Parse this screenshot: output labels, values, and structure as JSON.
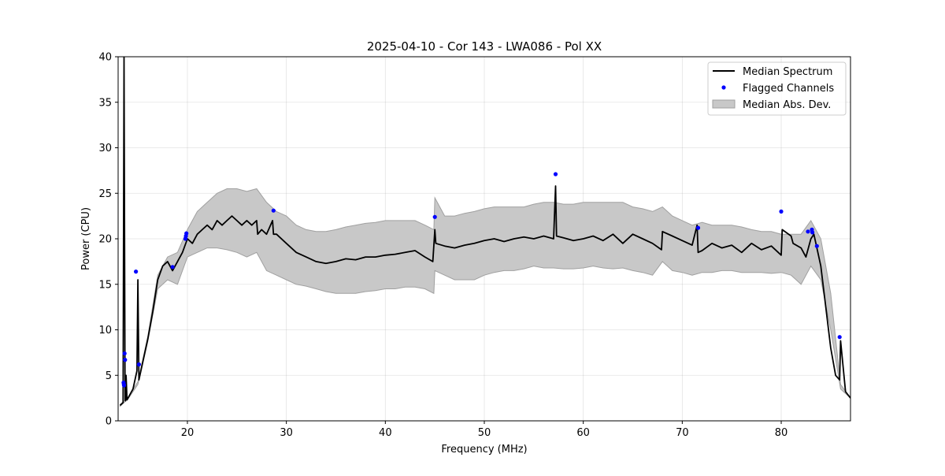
{
  "chart_data": {
    "type": "line",
    "title": "2025-04-10 - Cor 143 - LWA086 - Pol XX",
    "xlabel": "Frequency (MHz)",
    "ylabel": "Power (CPU)",
    "xlim": [
      13,
      87
    ],
    "ylim": [
      0,
      40
    ],
    "xticks": [
      20,
      30,
      40,
      50,
      60,
      70,
      80
    ],
    "yticks": [
      0,
      5,
      10,
      15,
      20,
      25,
      30,
      35,
      40
    ],
    "grid": true,
    "legend_position": "top-right",
    "legend": [
      "Median Spectrum",
      "Flagged Channels",
      "Median Abs. Dev."
    ],
    "colors": {
      "median": "#000000",
      "flagged": "#0000ff",
      "mad_fill": "#c8c8c8",
      "mad_edge": "#a0a0a0"
    },
    "series": [
      {
        "name": "Median Spectrum",
        "x": [
          13.2,
          13.5,
          13.6,
          13.7,
          13.75,
          13.8,
          13.9,
          14.0,
          14.5,
          14.9,
          15.0,
          15.1,
          15.3,
          15.6,
          16.0,
          16.5,
          17.0,
          17.5,
          18.0,
          18.5,
          19.0,
          19.5,
          20.0,
          20.5,
          21.0,
          21.5,
          22.0,
          22.5,
          23.0,
          23.5,
          24.0,
          24.5,
          25.0,
          25.5,
          26.0,
          26.5,
          27.0,
          27.1,
          27.5,
          28.0,
          28.6,
          28.7,
          29.0,
          30.0,
          31.0,
          32.0,
          33.0,
          34.0,
          35.0,
          36.0,
          37.0,
          38.0,
          39.0,
          40.0,
          41.0,
          42.0,
          43.0,
          44.0,
          44.8,
          45.0,
          45.1,
          46.0,
          47.0,
          48.0,
          49.0,
          50.0,
          51.0,
          52.0,
          53.0,
          54.0,
          55.0,
          56.0,
          57.0,
          57.2,
          57.3,
          58.0,
          59.0,
          60.0,
          61.0,
          62.0,
          63.0,
          64.0,
          65.0,
          66.0,
          67.0,
          67.9,
          68.0,
          69.0,
          70.0,
          71.0,
          71.5,
          71.6,
          72.0,
          73.0,
          74.0,
          75.0,
          76.0,
          77.0,
          78.0,
          79.0,
          80.0,
          80.1,
          81.0,
          81.2,
          82.0,
          82.5,
          83.0,
          83.3,
          83.6,
          84.0,
          84.5,
          85.0,
          85.5,
          85.9,
          86.0,
          86.5,
          87.0
        ],
        "y": [
          1.7,
          2.0,
          40.0,
          2.3,
          2.2,
          5.0,
          2.3,
          2.5,
          3.5,
          5.5,
          15.5,
          4.5,
          5.5,
          7.0,
          9.0,
          12.0,
          15.5,
          17.0,
          17.5,
          16.5,
          17.5,
          18.5,
          20.0,
          19.5,
          20.5,
          21.0,
          21.5,
          21.0,
          22.0,
          21.5,
          22.0,
          22.5,
          22.0,
          21.5,
          22.0,
          21.5,
          22.0,
          20.5,
          21.0,
          20.5,
          22.0,
          20.5,
          20.5,
          19.5,
          18.5,
          18.0,
          17.5,
          17.3,
          17.5,
          17.8,
          17.7,
          18.0,
          18.0,
          18.2,
          18.3,
          18.5,
          18.7,
          18.0,
          17.5,
          21.0,
          19.5,
          19.2,
          19.0,
          19.3,
          19.5,
          19.8,
          20.0,
          19.7,
          20.0,
          20.2,
          20.0,
          20.3,
          20.0,
          25.8,
          20.3,
          20.1,
          19.8,
          20.0,
          20.3,
          19.8,
          20.5,
          19.5,
          20.5,
          20.0,
          19.5,
          18.8,
          20.8,
          20.3,
          19.8,
          19.3,
          21.5,
          18.5,
          18.7,
          19.5,
          19.0,
          19.3,
          18.5,
          19.5,
          18.8,
          19.2,
          18.2,
          21.0,
          20.3,
          19.5,
          19.0,
          18.0,
          20.0,
          20.5,
          19.0,
          17.0,
          12.5,
          8.0,
          5.0,
          4.5,
          8.8,
          3.2,
          2.5
        ]
      },
      {
        "name": "Median Abs. Dev.",
        "x": [
          13.2,
          14.0,
          15.0,
          16.0,
          17.0,
          18.0,
          19.0,
          20.0,
          21.0,
          22.0,
          23.0,
          24.0,
          25.0,
          26.0,
          27.0,
          28.0,
          29.0,
          30.0,
          31.0,
          32.0,
          33.0,
          34.0,
          35.0,
          36.0,
          37.0,
          38.0,
          39.0,
          40.0,
          41.0,
          42.0,
          43.0,
          44.0,
          44.9,
          45.0,
          46.0,
          47.0,
          48.0,
          49.0,
          50.0,
          51.0,
          52.0,
          53.0,
          54.0,
          55.0,
          56.0,
          57.0,
          58.0,
          59.0,
          60.0,
          61.0,
          62.0,
          63.0,
          64.0,
          65.0,
          66.0,
          67.0,
          68.0,
          69.0,
          70.0,
          71.0,
          72.0,
          73.0,
          74.0,
          75.0,
          76.0,
          77.0,
          78.0,
          79.0,
          80.0,
          81.0,
          82.0,
          83.0,
          84.0,
          85.0,
          86.0,
          87.0
        ],
        "upper": [
          1.8,
          2.6,
          4.3,
          9.3,
          16.0,
          18.0,
          18.5,
          21.0,
          23.0,
          24.0,
          25.0,
          25.5,
          25.5,
          25.2,
          25.5,
          24.0,
          23.0,
          22.5,
          21.5,
          21.0,
          20.8,
          20.8,
          21.0,
          21.3,
          21.5,
          21.7,
          21.8,
          22.0,
          22.0,
          22.0,
          22.0,
          21.5,
          21.0,
          24.5,
          22.5,
          22.5,
          22.8,
          23.0,
          23.3,
          23.5,
          23.5,
          23.5,
          23.5,
          23.8,
          24.0,
          24.0,
          23.8,
          23.8,
          24.0,
          24.0,
          24.0,
          24.0,
          24.0,
          23.5,
          23.3,
          23.0,
          23.5,
          22.5,
          22.0,
          21.5,
          21.8,
          21.5,
          21.5,
          21.5,
          21.3,
          21.0,
          20.8,
          20.8,
          20.5,
          20.5,
          20.5,
          22.0,
          20.0,
          14.0,
          4.0,
          2.5
        ],
        "lower": [
          1.6,
          2.4,
          4.0,
          8.7,
          14.5,
          15.5,
          15.0,
          18.0,
          18.5,
          19.0,
          19.0,
          18.8,
          18.5,
          18.0,
          18.5,
          16.5,
          16.0,
          15.5,
          15.0,
          14.8,
          14.5,
          14.2,
          14.0,
          14.0,
          14.0,
          14.2,
          14.3,
          14.5,
          14.5,
          14.7,
          14.7,
          14.5,
          14.0,
          16.5,
          16.0,
          15.5,
          15.5,
          15.5,
          16.0,
          16.3,
          16.5,
          16.5,
          16.7,
          17.0,
          16.8,
          16.8,
          16.7,
          16.7,
          16.8,
          17.0,
          16.8,
          16.7,
          16.8,
          16.5,
          16.3,
          16.0,
          17.5,
          16.5,
          16.3,
          16.0,
          16.3,
          16.3,
          16.5,
          16.5,
          16.3,
          16.3,
          16.3,
          16.2,
          16.3,
          16.0,
          15.0,
          17.0,
          15.5,
          10.0,
          3.5,
          2.5
        ]
      },
      {
        "name": "Flagged Channels",
        "points": [
          [
            13.65,
            7.4
          ],
          [
            13.7,
            6.7
          ],
          [
            13.55,
            4.2
          ],
          [
            13.6,
            3.9
          ],
          [
            13.58,
            4.0
          ],
          [
            14.8,
            16.4
          ],
          [
            15.1,
            6.2
          ],
          [
            18.5,
            16.9
          ],
          [
            19.8,
            20.0
          ],
          [
            19.85,
            20.3
          ],
          [
            19.9,
            20.6
          ],
          [
            28.7,
            23.1
          ],
          [
            45.0,
            22.4
          ],
          [
            57.2,
            27.1
          ],
          [
            71.6,
            21.2
          ],
          [
            80.0,
            23.0
          ],
          [
            82.7,
            20.8
          ],
          [
            83.1,
            21.0
          ],
          [
            83.15,
            20.7
          ],
          [
            83.6,
            19.2
          ],
          [
            85.9,
            9.2
          ]
        ]
      }
    ]
  }
}
